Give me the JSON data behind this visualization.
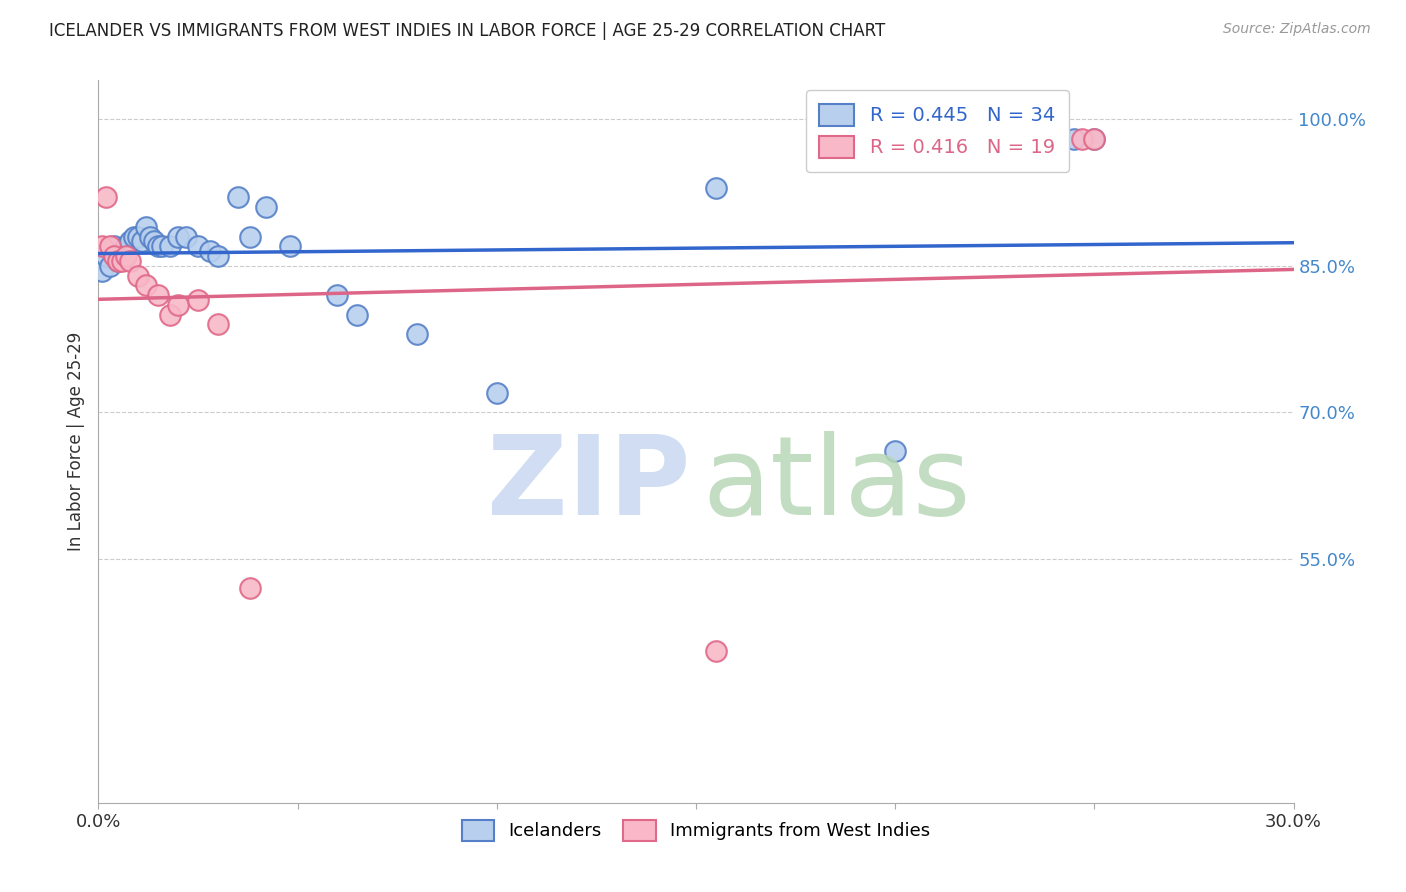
{
  "title": "ICELANDER VS IMMIGRANTS FROM WEST INDIES IN LABOR FORCE | AGE 25-29 CORRELATION CHART",
  "source": "Source: ZipAtlas.com",
  "ylabel": "In Labor Force | Age 25-29",
  "xlim": [
    0.0,
    0.3
  ],
  "ylim": [
    0.3,
    1.04
  ],
  "xticks": [
    0.0,
    0.05,
    0.1,
    0.15,
    0.2,
    0.25,
    0.3
  ],
  "yticks_right": [
    0.55,
    0.7,
    0.85,
    1.0
  ],
  "ytick_labels_right": [
    "55.0%",
    "70.0%",
    "85.0%",
    "100.0%"
  ],
  "blue_x": [
    0.001,
    0.002,
    0.003,
    0.004,
    0.005,
    0.006,
    0.007,
    0.008,
    0.009,
    0.01,
    0.011,
    0.012,
    0.013,
    0.014,
    0.015,
    0.016,
    0.018,
    0.02,
    0.022,
    0.025,
    0.028,
    0.03,
    0.035,
    0.038,
    0.042,
    0.048,
    0.06,
    0.065,
    0.08,
    0.1,
    0.155,
    0.2,
    0.245,
    0.25
  ],
  "blue_y": [
    0.845,
    0.86,
    0.85,
    0.87,
    0.855,
    0.865,
    0.87,
    0.875,
    0.88,
    0.88,
    0.875,
    0.89,
    0.88,
    0.875,
    0.87,
    0.87,
    0.87,
    0.88,
    0.88,
    0.87,
    0.865,
    0.86,
    0.92,
    0.88,
    0.91,
    0.87,
    0.82,
    0.8,
    0.78,
    0.72,
    0.93,
    0.66,
    0.98,
    0.98
  ],
  "pink_x": [
    0.001,
    0.002,
    0.003,
    0.004,
    0.005,
    0.006,
    0.007,
    0.008,
    0.01,
    0.012,
    0.015,
    0.018,
    0.02,
    0.025,
    0.03,
    0.038,
    0.155,
    0.247,
    0.25
  ],
  "pink_y": [
    0.87,
    0.92,
    0.87,
    0.86,
    0.855,
    0.855,
    0.86,
    0.855,
    0.84,
    0.83,
    0.82,
    0.8,
    0.81,
    0.815,
    0.79,
    0.52,
    0.455,
    0.98,
    0.98
  ],
  "blue_R": 0.445,
  "blue_N": 34,
  "pink_R": 0.416,
  "pink_N": 19,
  "blue_scatter_face": "#b8d0ee",
  "blue_scatter_edge": "#5580c8",
  "pink_scatter_face": "#f8b8c8",
  "pink_scatter_edge": "#e06888",
  "blue_line_color": "#3366cc",
  "pink_line_color": "#dd6688",
  "grid_color": "#cccccc",
  "title_color": "#222222",
  "right_tick_color": "#4488cc",
  "watermark_zip_color": "#c8d8f0",
  "watermark_atlas_color": "#b8d8b8"
}
